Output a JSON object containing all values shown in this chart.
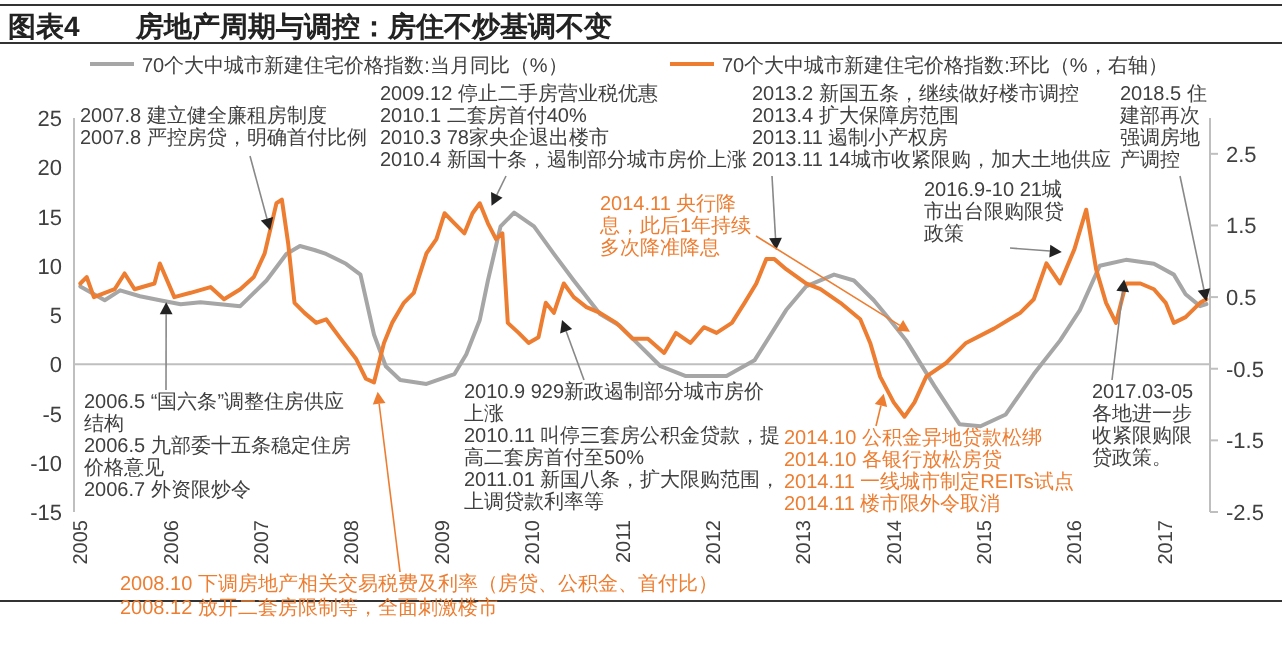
{
  "chart_data": {
    "type": "line",
    "title": "图表4　　房地产周期与调控：房住不炒基调不变",
    "xlim": [
      2004.93,
      2017.5
    ],
    "xticks": [
      {
        "value": 2005,
        "label": "2005"
      },
      {
        "value": 2006,
        "label": "2006"
      },
      {
        "value": 2007,
        "label": "2007"
      },
      {
        "value": 2008,
        "label": "2008"
      },
      {
        "value": 2009,
        "label": "2009"
      },
      {
        "value": 2010,
        "label": "2010"
      },
      {
        "value": 2011,
        "label": "2011"
      },
      {
        "value": 2012,
        "label": "2012"
      },
      {
        "value": 2013,
        "label": "2013"
      },
      {
        "value": 2014,
        "label": "2014"
      },
      {
        "value": 2015,
        "label": "2015"
      },
      {
        "value": 2016,
        "label": "2016"
      },
      {
        "value": 2017,
        "label": "2017"
      }
    ],
    "ylim": [
      -15,
      25
    ],
    "yticks": [
      -15,
      -10,
      -5,
      0,
      5,
      10,
      15,
      20,
      25
    ],
    "y2lim": [
      -2.5,
      3.0
    ],
    "y2ticks": [
      -2.5,
      -1.5,
      -0.5,
      0.5,
      1.5,
      2.5
    ],
    "legend": "top",
    "grid": false,
    "ref_lines": [
      {
        "axis": "y",
        "value": 0,
        "color": "#bfbfbf"
      }
    ],
    "annotations": [
      "2007.8 建立健全廉租房制度",
      {
        "text": "2007.8 严控房贷，明确首付比例",
        "x": 2007.1,
        "y": 13.6
      },
      "2009.12 停止二手房营业税优惠",
      "2010.1 二套房首付40%",
      "2010.3 78家央企退出楼市",
      {
        "text": "2010.4 新国十条，遏制部分城市房价上涨",
        "x": 2009.55,
        "y": 16.1
      },
      "2013.2 新国五条，继续做好楼市调控",
      "2013.4 扩大保障房范围",
      "2013.11 遏制小产权房",
      {
        "text": "2013.11 14城市收紧限购，加大土地供应",
        "x": 2012.7,
        "y": 11.6
      },
      {
        "text": "2014.11 央行降息，此后1年持续多次降准降息",
        "x": 2014.18,
        "y": 3.3
      },
      {
        "text": "2016.9-10 21城市出台限购限贷政策",
        "x": 2015.86,
        "y": 11.4
      },
      {
        "text": "2018.5 住建部再次强调房地产调控",
        "x": 2017.46,
        "y": 6.4
      },
      {
        "text": "2006.5 “国六条”调整住房供应结构",
        "x": 2005.95,
        "y": 6.3
      },
      "2006.5 九部委十五条稳定住房价格意见",
      "2006.7 外资限炒令",
      {
        "text": "2008.10 下调房地产相关交易税费及利率（房贷、公积金、首付比）",
        "x": 2008.29,
        "y": -2.8
      },
      "2008.12 放开二套房限制等，全面刺激楼市",
      {
        "text": "2010.9 929新政遏制部分城市房价上涨",
        "x": 2010.33,
        "y": 4.5
      },
      "2010.11 叫停三套房公积金贷款，提高二套房首付至50%",
      "2011.01 新国八条，扩大限购范围，上调贷款利率等",
      {
        "text": "2014.10 公积金异地贷款松绑",
        "x": 2013.89,
        "y": -3.0
      },
      "2014.10 各银行放松房贷",
      "2014.11 一线城市制定REITs试点",
      "2014.11 楼市限外令取消",
      {
        "text": "2017.03-05各地进一步收紧限购限贷政策。",
        "x": 2016.55,
        "y": 8.6
      }
    ],
    "series": [
      {
        "name": "70个大中城市新建住宅价格指数:当月同比（%）",
        "color": "#a6a6a6",
        "x": [
          2005.0,
          2005.27,
          2005.44,
          2005.66,
          2005.88,
          2006.11,
          2006.33,
          2006.55,
          2006.77,
          2007.06,
          2007.28,
          2007.43,
          2007.59,
          2007.72,
          2007.94,
          2008.1,
          2008.25,
          2008.38,
          2008.54,
          2008.83,
          2009.14,
          2009.27,
          2009.42,
          2009.51,
          2009.65,
          2009.8,
          2010.02,
          2010.24,
          2010.46,
          2010.75,
          2010.97,
          2011.42,
          2011.7,
          2012.15,
          2012.46,
          2012.81,
          2013.03,
          2013.34,
          2013.56,
          2013.78,
          2013.96,
          2014.14,
          2014.45,
          2014.73,
          2014.96,
          2015.24,
          2015.55,
          2015.84,
          2016.06,
          2016.28,
          2016.57,
          2016.88,
          2017.1,
          2017.23,
          2017.39,
          2017.46
        ],
        "values": [
          7.9,
          6.5,
          7.5,
          6.9,
          6.5,
          6.1,
          6.3,
          6.1,
          5.9,
          8.5,
          11.2,
          12.0,
          11.6,
          11.2,
          10.2,
          9.1,
          3.0,
          -0.2,
          -1.6,
          -2.0,
          -1.0,
          1.0,
          4.5,
          8.5,
          14.0,
          15.4,
          14.0,
          11.2,
          8.5,
          5.1,
          3.9,
          -0.2,
          -1.2,
          -1.2,
          0.4,
          5.5,
          7.9,
          9.1,
          8.5,
          6.5,
          4.5,
          2.4,
          -2.2,
          -6.1,
          -6.3,
          -5.1,
          -1.0,
          2.4,
          5.5,
          10.0,
          10.6,
          10.2,
          9.1,
          7.1,
          5.9,
          6.1
        ]
      },
      {
        "name": "70个大中城市新建住宅价格指数:环比（%，右轴）",
        "color": "#ed7d31",
        "axis": "y2",
        "x": [
          2005.0,
          2005.07,
          2005.15,
          2005.38,
          2005.49,
          2005.6,
          2005.82,
          2005.88,
          2006.04,
          2006.22,
          2006.44,
          2006.59,
          2006.77,
          2006.92,
          2007.04,
          2007.17,
          2007.23,
          2007.3,
          2007.37,
          2007.48,
          2007.61,
          2007.72,
          2007.88,
          2008.05,
          2008.16,
          2008.25,
          2008.36,
          2008.45,
          2008.58,
          2008.69,
          2008.83,
          2008.94,
          2009.03,
          2009.14,
          2009.25,
          2009.34,
          2009.42,
          2009.51,
          2009.6,
          2009.67,
          2009.73,
          2009.85,
          2009.96,
          2010.07,
          2010.15,
          2010.24,
          2010.35,
          2010.46,
          2010.6,
          2010.75,
          2010.93,
          2011.11,
          2011.28,
          2011.46,
          2011.59,
          2011.75,
          2011.9,
          2012.04,
          2012.21,
          2012.35,
          2012.48,
          2012.59,
          2012.68,
          2012.81,
          2013.03,
          2013.19,
          2013.41,
          2013.63,
          2013.74,
          2013.85,
          2014.0,
          2014.12,
          2014.23,
          2014.36,
          2014.58,
          2014.8,
          2015.11,
          2015.4,
          2015.55,
          2015.69,
          2015.84,
          2016.0,
          2016.13,
          2016.24,
          2016.35,
          2016.46,
          2016.57,
          2016.73,
          2016.88,
          2017.01,
          2017.1,
          2017.23,
          2017.39,
          2017.46
        ],
        "values": [
          0.69,
          0.78,
          0.5,
          0.61,
          0.83,
          0.61,
          0.69,
          0.97,
          0.5,
          0.56,
          0.64,
          0.47,
          0.61,
          0.78,
          1.11,
          1.81,
          1.86,
          1.25,
          0.42,
          0.28,
          0.14,
          0.19,
          -0.08,
          -0.36,
          -0.64,
          -0.69,
          -0.14,
          0.14,
          0.42,
          0.56,
          1.11,
          1.31,
          1.67,
          1.53,
          1.39,
          1.67,
          1.81,
          1.53,
          1.31,
          1.39,
          0.14,
          0.0,
          -0.14,
          -0.06,
          0.42,
          0.28,
          0.69,
          0.5,
          0.36,
          0.28,
          0.14,
          -0.08,
          -0.08,
          -0.28,
          0.0,
          -0.14,
          0.08,
          0.0,
          0.14,
          0.42,
          0.69,
          1.03,
          1.03,
          0.89,
          0.69,
          0.61,
          0.42,
          0.19,
          -0.14,
          -0.61,
          -0.97,
          -1.17,
          -0.97,
          -0.61,
          -0.42,
          -0.14,
          0.06,
          0.28,
          0.47,
          0.97,
          0.69,
          1.17,
          1.72,
          0.89,
          0.42,
          0.14,
          0.69,
          0.69,
          0.61,
          0.42,
          0.14,
          0.22,
          0.42,
          0.47
        ]
      }
    ]
  }
}
